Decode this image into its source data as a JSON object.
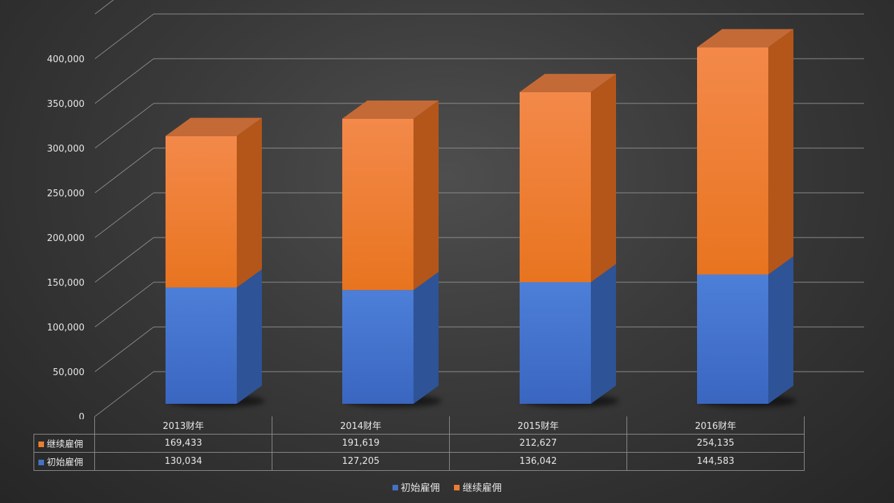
{
  "chart_data": {
    "type": "bar",
    "stacked": true,
    "three_d": true,
    "categories": [
      "2013财年",
      "2014财年",
      "2015财年",
      "2016财年"
    ],
    "series": [
      {
        "name": "初始雇佣",
        "values": [
          130034,
          127205,
          136042,
          144583
        ],
        "labels": [
          "130,034",
          "127,205",
          "136,042",
          "144,583"
        ],
        "color": "#4472c4"
      },
      {
        "name": "继续雇佣",
        "values": [
          169433,
          191619,
          212627,
          254135
        ],
        "labels": [
          "169,433",
          "191,619",
          "212,627",
          "254,135"
        ],
        "color": "#ed7d31"
      }
    ],
    "ylim": [
      0,
      400000
    ],
    "yticks": [
      "0",
      "50,000",
      "100,000",
      "150,000",
      "200,000",
      "250,000",
      "300,000",
      "350,000",
      "400,000"
    ],
    "grid": true,
    "data_table": true,
    "legend": "bottom"
  }
}
